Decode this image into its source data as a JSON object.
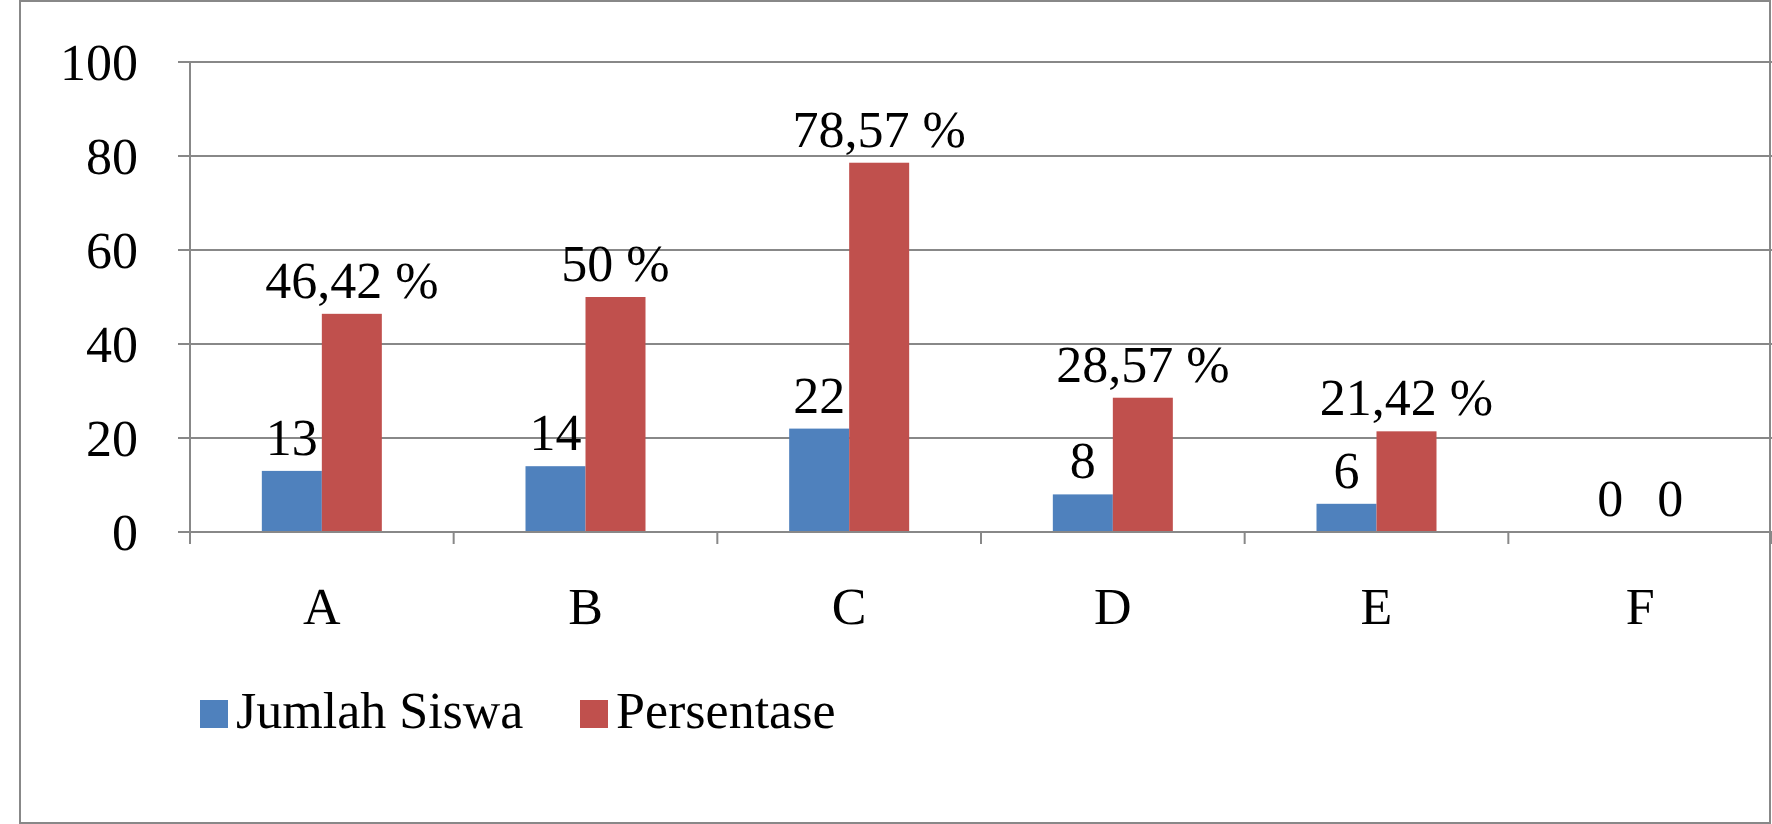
{
  "chart_data": {
    "type": "bar",
    "categories": [
      "A",
      "B",
      "C",
      "D",
      "E",
      "F"
    ],
    "series": [
      {
        "name": "Jumlah Siswa",
        "color": "#4f81bd",
        "values": [
          13,
          14,
          22,
          8,
          6,
          0
        ],
        "value_labels": [
          "13",
          "14",
          "22",
          "8",
          "6",
          "0"
        ]
      },
      {
        "name": "Persentase",
        "color": "#c0504d",
        "values": [
          46.42,
          50,
          78.57,
          28.57,
          21.42,
          0
        ],
        "value_labels": [
          "46,42 %",
          "50 %",
          "78,57 %",
          "28,57 %",
          "21,42 %",
          "0"
        ]
      }
    ],
    "ylim": [
      0,
      100
    ],
    "yticks": [
      0,
      20,
      40,
      60,
      80,
      100
    ],
    "grid": "y",
    "legend": "bottom left"
  }
}
